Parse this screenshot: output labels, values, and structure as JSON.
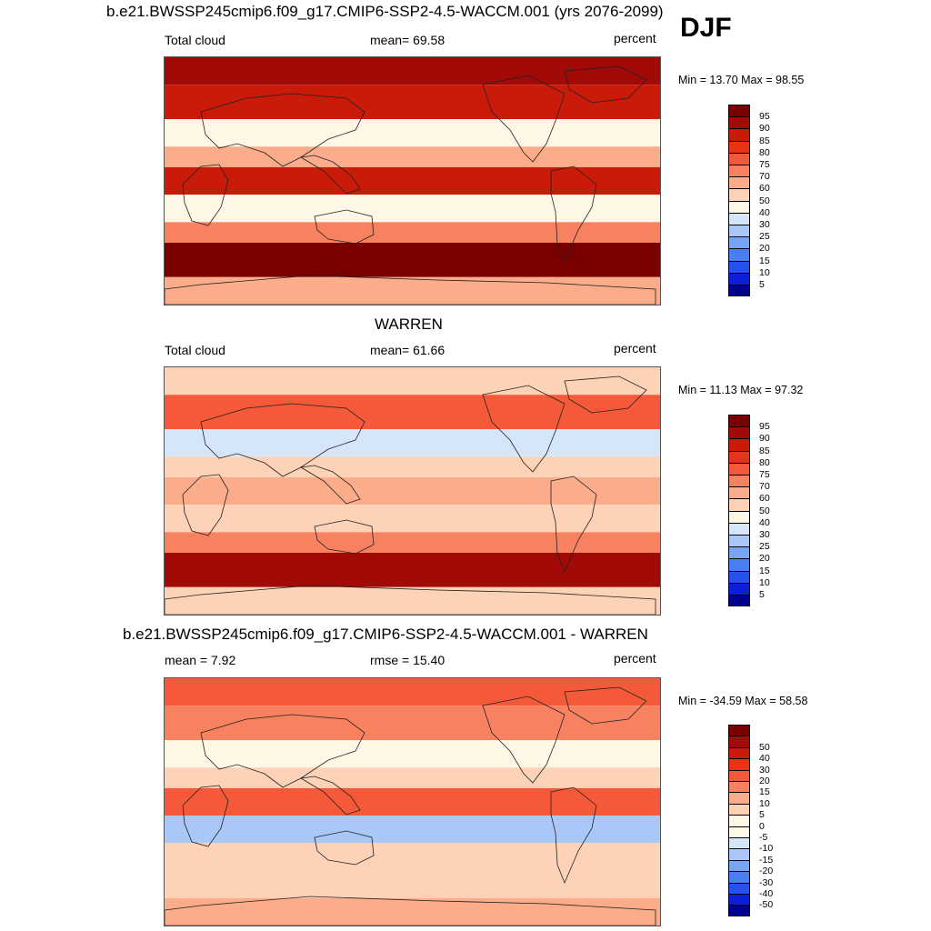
{
  "season": "DJF",
  "palette_abs": [
    "#00008f",
    "#0b1fd8",
    "#2551ec",
    "#4880f2",
    "#76a5f5",
    "#a9c8f7",
    "#d6e6fa",
    "#fef7e6",
    "#fdd2b6",
    "#fbac8a",
    "#f88260",
    "#f45a3a",
    "#e83415",
    "#c91a0a",
    "#a10a06",
    "#7a0000"
  ],
  "palette_diff": [
    "#00008f",
    "#0b1fd8",
    "#2551ec",
    "#4880f2",
    "#76a5f5",
    "#a9c8f7",
    "#d6e6fa",
    "#fef7e6",
    "#fef7e6",
    "#fdd2b6",
    "#fbac8a",
    "#f88260",
    "#f45a3a",
    "#e83415",
    "#c91a0a",
    "#a10a06",
    "#7a0000"
  ],
  "panels": [
    {
      "title": "b.e21.BWSSP245cmip6.f09_g17.CMIP6-SSP2-4.5-WACCM.001 (yrs 2076-2099)",
      "left_label": "Total cloud",
      "center_label": "mean=  69.58",
      "units": "percent",
      "minmax": "Min =  13.70 Max =  98.55"
    },
    {
      "title": "WARREN",
      "left_label": "Total cloud",
      "center_label": "mean=  61.66",
      "units": "percent",
      "minmax": "Min =  11.13 Max =  97.32"
    },
    {
      "title": "b.e21.BWSSP245cmip6.f09_g17.CMIP6-SSP2-4.5-WACCM.001 - WARREN",
      "left_label": "mean =   7.92",
      "center_label": "rmse =  15.40",
      "units": "percent",
      "minmax": "Min = -34.59 Max =  58.58"
    }
  ],
  "chart_data": [
    {
      "type": "heatmap",
      "title": "b.e21.BWSSP245cmip6.f09_g17.CMIP6-SSP2-4.5-WACCM.001 (yrs 2076-2099)",
      "variable": "Total cloud",
      "units": "percent",
      "mean": 69.58,
      "min": 13.7,
      "max": 98.55,
      "colorbar_levels": [
        5,
        10,
        15,
        20,
        25,
        30,
        40,
        50,
        60,
        70,
        75,
        80,
        85,
        90,
        95
      ],
      "bands": [
        {
          "lat_range": [
            70,
            90
          ],
          "value": 90
        },
        {
          "lat_range": [
            45,
            70
          ],
          "value": 88
        },
        {
          "lat_range": [
            25,
            45
          ],
          "value": 40
        },
        {
          "lat_range": [
            10,
            25
          ],
          "value": 60
        },
        {
          "lat_range": [
            -10,
            10
          ],
          "value": 85
        },
        {
          "lat_range": [
            -30,
            -10
          ],
          "value": 45
        },
        {
          "lat_range": [
            -45,
            -30
          ],
          "value": 70
        },
        {
          "lat_range": [
            -70,
            -45
          ],
          "value": 95
        },
        {
          "lat_range": [
            -90,
            -70
          ],
          "value": 65
        }
      ]
    },
    {
      "type": "heatmap",
      "title": "WARREN",
      "variable": "Total cloud",
      "units": "percent",
      "mean": 61.66,
      "min": 11.13,
      "max": 97.32,
      "colorbar_levels": [
        5,
        10,
        15,
        20,
        25,
        30,
        40,
        50,
        60,
        70,
        75,
        80,
        85,
        90,
        95
      ],
      "bands": [
        {
          "lat_range": [
            70,
            90
          ],
          "value": 55
        },
        {
          "lat_range": [
            45,
            70
          ],
          "value": 75
        },
        {
          "lat_range": [
            25,
            45
          ],
          "value": 35
        },
        {
          "lat_range": [
            10,
            25
          ],
          "value": 50
        },
        {
          "lat_range": [
            -10,
            10
          ],
          "value": 65
        },
        {
          "lat_range": [
            -30,
            -10
          ],
          "value": 55
        },
        {
          "lat_range": [
            -45,
            -30
          ],
          "value": 70
        },
        {
          "lat_range": [
            -70,
            -45
          ],
          "value": 90
        },
        {
          "lat_range": [
            -90,
            -70
          ],
          "value": 50
        }
      ]
    },
    {
      "type": "heatmap",
      "title": "b.e21.BWSSP245cmip6.f09_g17.CMIP6-SSP2-4.5-WACCM.001 - WARREN",
      "units": "percent",
      "mean": 7.92,
      "rmse": 15.4,
      "min": -34.59,
      "max": 58.58,
      "colorbar_levels": [
        -50,
        -40,
        -30,
        -20,
        -15,
        -10,
        -5,
        0,
        5,
        10,
        15,
        20,
        30,
        40,
        50
      ],
      "bands": [
        {
          "lat_range": [
            70,
            90
          ],
          "value": 25
        },
        {
          "lat_range": [
            45,
            70
          ],
          "value": 18
        },
        {
          "lat_range": [
            25,
            45
          ],
          "value": 3
        },
        {
          "lat_range": [
            10,
            25
          ],
          "value": 8
        },
        {
          "lat_range": [
            -10,
            10
          ],
          "value": 20
        },
        {
          "lat_range": [
            -30,
            -10
          ],
          "value": -12
        },
        {
          "lat_range": [
            -45,
            -30
          ],
          "value": 5
        },
        {
          "lat_range": [
            -70,
            -45
          ],
          "value": 6
        },
        {
          "lat_range": [
            -90,
            -70
          ],
          "value": 12
        }
      ]
    }
  ]
}
